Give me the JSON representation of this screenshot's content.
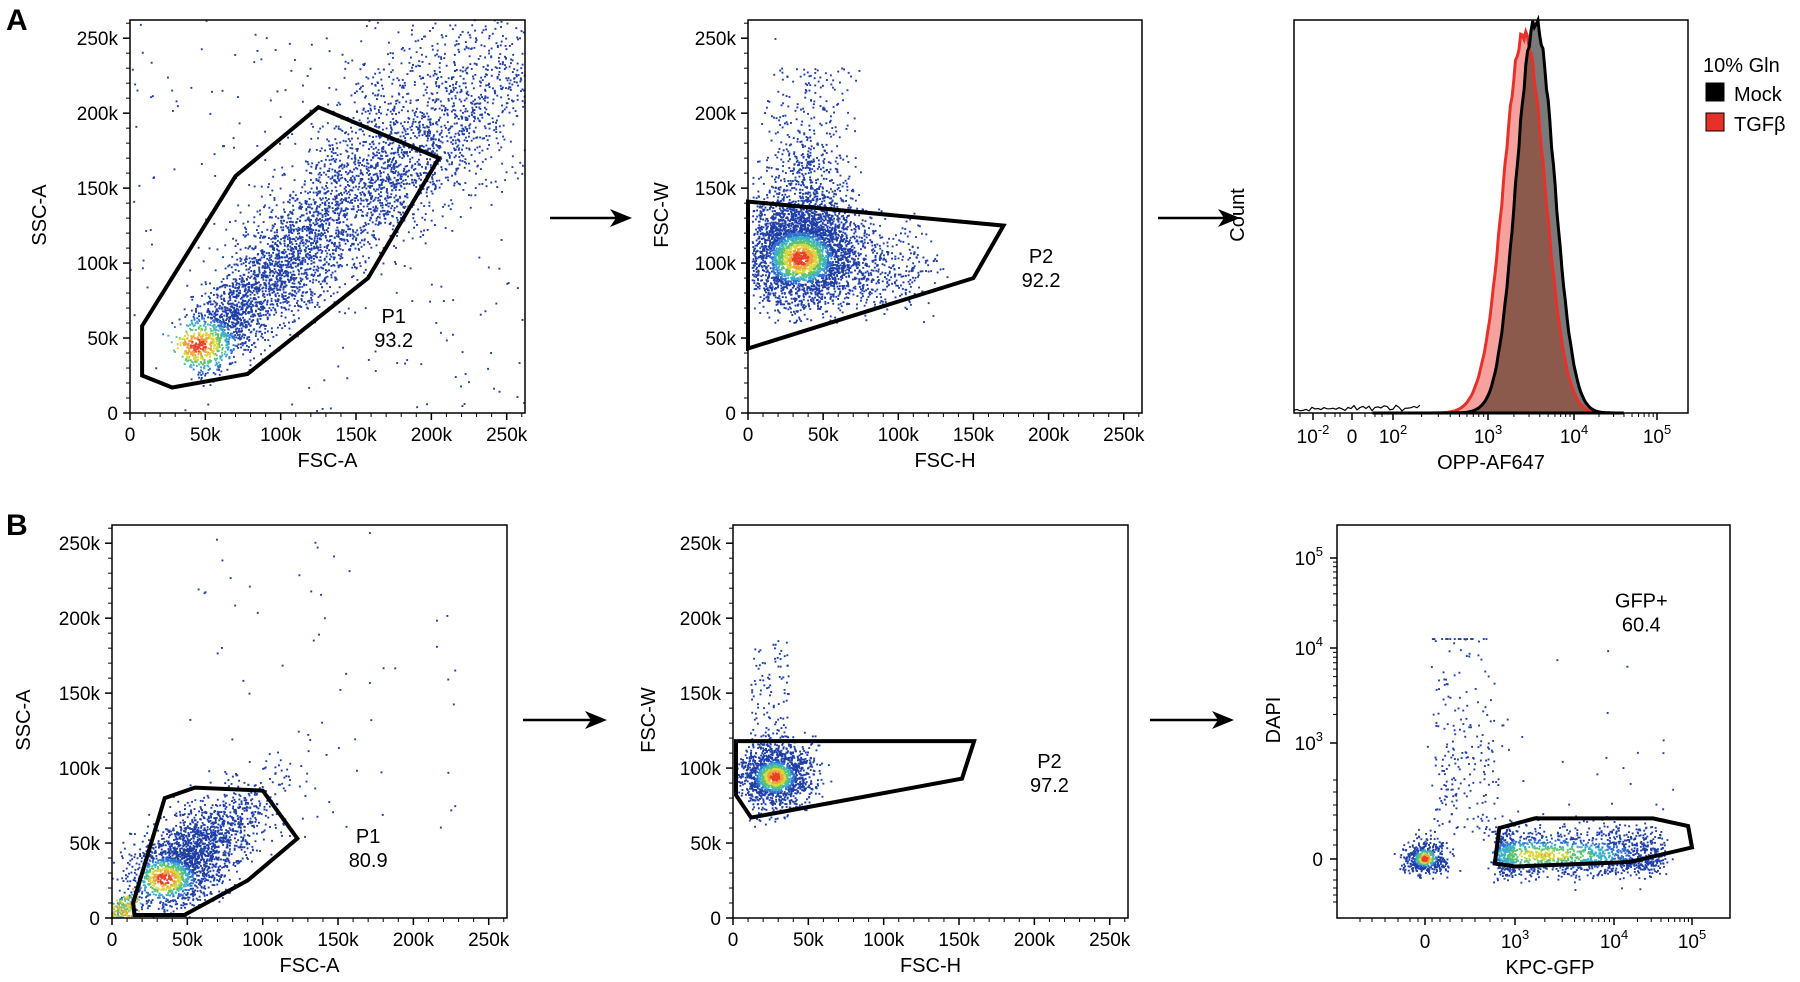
{
  "panel_letters": [
    "A",
    "B"
  ],
  "colors": {
    "density_scale": [
      "#1f3fa6",
      "#2f6fd0",
      "#39b0c8",
      "#5cc36e",
      "#d7d83a",
      "#f0a23a",
      "#e8402a"
    ],
    "mock_fill": "#000000",
    "mock_hist_fill": "#7a7a7a",
    "tgfb_color": "#e8302a",
    "overlap_fill": "#8c5a4c",
    "gate_stroke": "#000000"
  },
  "chart_data": [
    {
      "id": "A1",
      "type": "scatter",
      "subtype": "density-dot-plot",
      "xlabel": "FSC-A",
      "ylabel": "SSC-A",
      "xlim": [
        0,
        262144
      ],
      "ylim": [
        0,
        262144
      ],
      "xticks": [
        0,
        50000,
        100000,
        150000,
        200000,
        250000
      ],
      "xtick_labels": [
        "0",
        "50k",
        "100k",
        "150k",
        "200k",
        "250k"
      ],
      "yticks": [
        0,
        50000,
        100000,
        150000,
        200000,
        250000
      ],
      "ytick_labels": [
        "0",
        "50k",
        "100k",
        "150k",
        "200k",
        "250k"
      ],
      "population": {
        "center": [
          45000,
          45000
        ],
        "spread": "broad-diagonal",
        "events": 4200
      },
      "gate": {
        "name": "P1",
        "value": "93.2",
        "vertices": [
          [
            8000,
            58000
          ],
          [
            70000,
            158000
          ],
          [
            125000,
            204000
          ],
          [
            205000,
            170000
          ],
          [
            158000,
            90000
          ],
          [
            78000,
            26000
          ],
          [
            28000,
            17000
          ],
          [
            8000,
            25000
          ]
        ],
        "label_at": [
          175000,
          60000
        ]
      }
    },
    {
      "id": "A2",
      "type": "scatter",
      "subtype": "density-dot-plot",
      "xlabel": "FSC-H",
      "ylabel": "FSC-W",
      "xlim": [
        0,
        262144
      ],
      "ylim": [
        0,
        262144
      ],
      "xticks": [
        0,
        50000,
        100000,
        150000,
        200000,
        250000
      ],
      "xtick_labels": [
        "0",
        "50k",
        "100k",
        "150k",
        "200k",
        "250k"
      ],
      "yticks": [
        0,
        50000,
        100000,
        150000,
        200000,
        250000
      ],
      "ytick_labels": [
        "0",
        "50k",
        "100k",
        "150k",
        "200k",
        "250k"
      ],
      "population": {
        "center": [
          35000,
          103000
        ],
        "spread": "cluster",
        "events": 3800
      },
      "gate": {
        "name": "P2",
        "value": "92.2",
        "vertices": [
          [
            0,
            141000
          ],
          [
            170000,
            125000
          ],
          [
            150000,
            90000
          ],
          [
            0,
            43000
          ]
        ],
        "label_at": [
          195000,
          100000
        ]
      }
    },
    {
      "id": "A3",
      "type": "area",
      "subtype": "histogram-overlay",
      "xlabel": "OPP-AF647",
      "ylabel": "Count",
      "x_scale": "biexponential",
      "xtick_labels": [
        "10-2",
        "0",
        "102",
        "103",
        "104",
        "105"
      ],
      "legend": {
        "title": "10% Gln",
        "entries": [
          "Mock",
          "TGFβ"
        ],
        "placement": "right"
      },
      "series": [
        {
          "name": "Mock",
          "peak_decade": 3.55,
          "width": 0.22,
          "peak_count": 1.0
        },
        {
          "name": "TGFβ",
          "peak_decade": 3.42,
          "width": 0.24,
          "peak_count": 0.97
        }
      ]
    },
    {
      "id": "B1",
      "type": "scatter",
      "subtype": "density-dot-plot",
      "xlabel": "FSC-A",
      "ylabel": "SSC-A",
      "xlim": [
        0,
        262144
      ],
      "ylim": [
        0,
        262144
      ],
      "xticks": [
        0,
        50000,
        100000,
        150000,
        200000,
        250000
      ],
      "xtick_labels": [
        "0",
        "50k",
        "100k",
        "150k",
        "200k",
        "250k"
      ],
      "yticks": [
        0,
        50000,
        100000,
        150000,
        200000,
        250000
      ],
      "ytick_labels": [
        "0",
        "50k",
        "100k",
        "150k",
        "200k",
        "250k"
      ],
      "population": {
        "center": [
          35000,
          28000
        ],
        "spread": "diagonal-small",
        "events": 2200
      },
      "gate": {
        "name": "P1",
        "value": "80.9",
        "vertices": [
          [
            35000,
            80000
          ],
          [
            55000,
            87000
          ],
          [
            100000,
            85000
          ],
          [
            123000,
            53000
          ],
          [
            90000,
            25000
          ],
          [
            48000,
            2000
          ],
          [
            15000,
            2000
          ],
          [
            14000,
            10000
          ]
        ],
        "label_at": [
          170000,
          50000
        ]
      }
    },
    {
      "id": "B2",
      "type": "scatter",
      "subtype": "density-dot-plot",
      "xlabel": "FSC-H",
      "ylabel": "FSC-W",
      "xlim": [
        0,
        262144
      ],
      "ylim": [
        0,
        262144
      ],
      "xticks": [
        0,
        50000,
        100000,
        150000,
        200000,
        250000
      ],
      "xtick_labels": [
        "0",
        "50k",
        "100k",
        "150k",
        "200k",
        "250k"
      ],
      "yticks": [
        0,
        50000,
        100000,
        150000,
        200000,
        250000
      ],
      "ytick_labels": [
        "0",
        "50k",
        "100k",
        "150k",
        "200k",
        "250k"
      ],
      "population": {
        "center": [
          28000,
          94000
        ],
        "spread": "cluster-small",
        "events": 1600
      },
      "gate": {
        "name": "P2",
        "value": "97.2",
        "vertices": [
          [
            2000,
            118000
          ],
          [
            160000,
            118000
          ],
          [
            152000,
            93000
          ],
          [
            12000,
            67000
          ],
          [
            2000,
            82000
          ]
        ],
        "label_at": [
          210000,
          100000
        ]
      }
    },
    {
      "id": "B3",
      "type": "scatter",
      "subtype": "density-dot-plot",
      "xlabel": "KPC-GFP",
      "ylabel": "DAPI",
      "x_scale": "biexponential",
      "y_scale": "biexponential",
      "xtick_labels": [
        "0",
        "103",
        "104",
        "105"
      ],
      "ytick_labels": [
        "0",
        "103",
        "104",
        "105"
      ],
      "population": {
        "note": "GFP- cluster near 0, GFP+ band 10^2.5-10^4, DAPI+ streak",
        "events": 2400
      },
      "gate": {
        "name": "GFP+",
        "value": "60.4",
        "vertices": [
          [
            2.65,
            0.8
          ],
          [
            3.2,
            1.05
          ],
          [
            4.5,
            1.05
          ],
          [
            4.95,
            0.85
          ],
          [
            5.0,
            0.3
          ],
          [
            4.2,
            -0.1
          ],
          [
            3.0,
            -0.25
          ],
          [
            2.55,
            -0.15
          ]
        ],
        "label_at": [
          4.35,
          4.45
        ]
      }
    }
  ]
}
